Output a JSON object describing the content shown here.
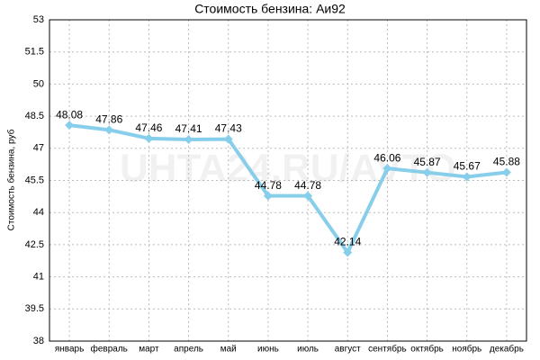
{
  "chart_data": {
    "type": "line",
    "title": "Стоимость бензина: Аи92",
    "y_label": "Стоимость бензина, руб",
    "watermark": "UHTA24.RU/AVTO",
    "categories": [
      "январь",
      "февраль",
      "март",
      "апрель",
      "май",
      "июнь",
      "июль",
      "август",
      "сентябрь",
      "октябрь",
      "ноябрь",
      "декабрь"
    ],
    "series": [
      {
        "name": "Аи92",
        "color": "#87ceeb",
        "values": [
          48.08,
          47.86,
          47.46,
          47.41,
          47.43,
          44.78,
          44.78,
          42.14,
          46.06,
          45.87,
          45.67,
          45.88
        ]
      }
    ],
    "ylim": [
      38,
      53
    ],
    "yticks": [
      38,
      39.5,
      41,
      42.5,
      44,
      45.5,
      47,
      48.5,
      50,
      51.5,
      53
    ],
    "grid": true
  }
}
